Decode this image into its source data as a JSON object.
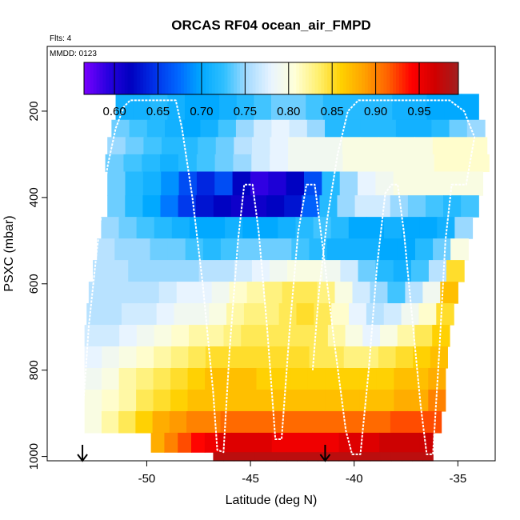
{
  "chart_data": {
    "type": "heatmap",
    "title": "ORCAS RF04 ocean_air_FMPD",
    "flights_note": "Flts: 4",
    "date_note": "MMDD: 0123",
    "xlabel": "Latitude (deg N)",
    "ylabel": "PSXC (mbar)",
    "xlim": [
      -54.8,
      -33.2
    ],
    "ylim": [
      1010,
      50
    ],
    "xticks": [
      -50,
      -45,
      -40,
      -35
    ],
    "xtick_labels": [
      "-50",
      "-45",
      "-40",
      "-35"
    ],
    "yticks": [
      200,
      400,
      600,
      800,
      1000
    ],
    "ytick_labels": [
      "200",
      "400",
      "600",
      "800",
      "1000"
    ],
    "colorbar": {
      "min": 0.565,
      "max": 0.995,
      "ticks": [
        0.6,
        0.65,
        0.7,
        0.75,
        0.8,
        0.85,
        0.9,
        0.95
      ],
      "tick_labels": [
        "0.60",
        "0.65",
        "0.70",
        "0.75",
        "0.80",
        "0.85",
        "0.90",
        "0.95"
      ],
      "colors": [
        "#7a00ff",
        "#2a00e0",
        "#0000c0",
        "#0030e8",
        "#0066ff",
        "#00a8ff",
        "#30c0ff",
        "#a8dcff",
        "#e8f4ff",
        "#ffffd8",
        "#fff070",
        "#ffd000",
        "#ffa000",
        "#ff6000",
        "#ff0000",
        "#d00000",
        "#a02020"
      ]
    },
    "rows": [
      {
        "p": 180,
        "p0": 160,
        "p1": 220,
        "lat0": -51.5,
        "lat1": -34.0,
        "v": [
          0.71,
          0.71,
          0.72,
          0.71,
          0.7,
          0.7,
          0.71,
          0.72,
          0.73,
          0.74,
          0.74,
          0.73,
          0.72,
          0.72,
          0.72,
          0.72,
          0.71,
          0.71,
          0.7,
          0.7,
          0.7
        ]
      },
      {
        "p": 240,
        "p0": 220,
        "p1": 260,
        "lat0": -51.7,
        "lat1": -33.7,
        "v": [
          0.74,
          0.73,
          0.72,
          0.71,
          0.7,
          0.71,
          0.73,
          0.75,
          0.77,
          0.78,
          0.77,
          0.75,
          0.72,
          0.72,
          0.72,
          0.72,
          0.71,
          0.71,
          0.72,
          0.74,
          0.75
        ]
      },
      {
        "p": 280,
        "p0": 260,
        "p1": 300,
        "lat0": -51.9,
        "lat1": -33.6,
        "v": [
          0.75,
          0.74,
          0.73,
          0.72,
          0.72,
          0.73,
          0.74,
          0.76,
          0.77,
          0.78,
          0.79,
          0.79,
          0.79,
          0.8,
          0.8,
          0.8,
          0.8,
          0.8,
          0.81,
          0.81,
          0.81
        ]
      },
      {
        "p": 320,
        "p0": 300,
        "p1": 340,
        "lat0": -52.0,
        "lat1": -33.5,
        "v": [
          0.74,
          0.73,
          0.72,
          0.71,
          0.72,
          0.73,
          0.74,
          0.75,
          0.77,
          0.78,
          0.79,
          0.79,
          0.79,
          0.8,
          0.8,
          0.8,
          0.8,
          0.8,
          0.81,
          0.81,
          0.81
        ]
      },
      {
        "p": 370,
        "p0": 340,
        "p1": 395,
        "lat0": -51.9,
        "lat1": -33.8,
        "v": [
          0.74,
          0.72,
          0.71,
          0.69,
          0.66,
          0.64,
          0.66,
          0.62,
          0.59,
          0.6,
          0.62,
          0.66,
          0.72,
          0.75,
          0.78,
          0.79,
          0.8,
          0.8,
          0.8,
          0.8,
          0.8
        ]
      },
      {
        "p": 420,
        "p0": 395,
        "p1": 445,
        "lat0": -51.9,
        "lat1": -34.0,
        "v": [
          0.74,
          0.72,
          0.7,
          0.68,
          0.65,
          0.63,
          0.62,
          0.61,
          0.61,
          0.62,
          0.63,
          0.67,
          0.72,
          0.75,
          0.77,
          0.77,
          0.75,
          0.74,
          0.73,
          0.72,
          0.73
        ]
      },
      {
        "p": 470,
        "p0": 445,
        "p1": 495,
        "lat0": -52.2,
        "lat1": -34.3,
        "v": [
          0.75,
          0.74,
          0.73,
          0.72,
          0.71,
          0.7,
          0.7,
          0.71,
          0.7,
          0.7,
          0.71,
          0.72,
          0.73,
          0.72,
          0.7,
          0.7,
          0.71,
          0.7,
          0.7,
          0.71,
          0.75
        ]
      },
      {
        "p": 520,
        "p0": 495,
        "p1": 545,
        "lat0": -52.4,
        "lat1": -34.5,
        "v": [
          0.76,
          0.75,
          0.75,
          0.74,
          0.74,
          0.73,
          0.72,
          0.73,
          0.74,
          0.74,
          0.74,
          0.73,
          0.72,
          0.71,
          0.71,
          0.71,
          0.7,
          0.7,
          0.72,
          0.74,
          0.8
        ]
      },
      {
        "p": 570,
        "p0": 545,
        "p1": 595,
        "lat0": -52.6,
        "lat1": -34.7,
        "v": [
          0.76,
          0.76,
          0.75,
          0.75,
          0.75,
          0.75,
          0.76,
          0.76,
          0.77,
          0.78,
          0.79,
          0.8,
          0.8,
          0.79,
          0.77,
          0.74,
          0.72,
          0.71,
          0.73,
          0.76,
          0.85
        ]
      },
      {
        "p": 620,
        "p0": 595,
        "p1": 645,
        "lat0": -52.8,
        "lat1": -35.0,
        "v": [
          0.76,
          0.76,
          0.76,
          0.76,
          0.77,
          0.78,
          0.78,
          0.79,
          0.81,
          0.82,
          0.83,
          0.84,
          0.84,
          0.83,
          0.8,
          0.77,
          0.75,
          0.73,
          0.76,
          0.79,
          0.87
        ]
      },
      {
        "p": 670,
        "p0": 645,
        "p1": 695,
        "lat0": -52.9,
        "lat1": -35.2,
        "v": [
          0.76,
          0.76,
          0.77,
          0.77,
          0.78,
          0.79,
          0.79,
          0.8,
          0.82,
          0.83,
          0.83,
          0.84,
          0.85,
          0.84,
          0.81,
          0.78,
          0.76,
          0.77,
          0.79,
          0.81,
          0.85
        ]
      },
      {
        "p": 720,
        "p0": 695,
        "p1": 745,
        "lat0": -53.0,
        "lat1": -35.4,
        "v": [
          0.77,
          0.77,
          0.78,
          0.79,
          0.8,
          0.81,
          0.82,
          0.82,
          0.83,
          0.84,
          0.84,
          0.84,
          0.84,
          0.84,
          0.82,
          0.8,
          0.78,
          0.8,
          0.82,
          0.84,
          0.86
        ]
      },
      {
        "p": 770,
        "p0": 745,
        "p1": 795,
        "lat0": -53.0,
        "lat1": -35.5,
        "v": [
          0.78,
          0.79,
          0.8,
          0.81,
          0.82,
          0.83,
          0.84,
          0.85,
          0.85,
          0.85,
          0.85,
          0.85,
          0.85,
          0.84,
          0.84,
          0.83,
          0.83,
          0.84,
          0.85,
          0.86,
          0.87
        ]
      },
      {
        "p": 820,
        "p0": 795,
        "p1": 845,
        "lat0": -53.0,
        "lat1": -35.6,
        "v": [
          0.79,
          0.8,
          0.82,
          0.83,
          0.84,
          0.85,
          0.86,
          0.87,
          0.87,
          0.87,
          0.86,
          0.86,
          0.86,
          0.86,
          0.86,
          0.86,
          0.86,
          0.86,
          0.87,
          0.87,
          0.88
        ]
      },
      {
        "p": 870,
        "p0": 845,
        "p1": 895,
        "lat0": -53.0,
        "lat1": -35.6,
        "v": [
          0.8,
          0.81,
          0.82,
          0.84,
          0.85,
          0.86,
          0.87,
          0.87,
          0.87,
          0.87,
          0.87,
          0.87,
          0.87,
          0.87,
          0.87,
          0.87,
          0.87,
          0.87,
          0.88,
          0.88,
          0.9
        ]
      },
      {
        "p": 920,
        "p0": 895,
        "p1": 945,
        "lat0": -53.0,
        "lat1": -35.8,
        "v": [
          0.8,
          0.82,
          0.84,
          0.86,
          0.88,
          0.89,
          0.9,
          0.9,
          0.91,
          0.91,
          0.91,
          0.91,
          0.91,
          0.91,
          0.91,
          0.91,
          0.91,
          0.91,
          0.92,
          0.92,
          0.92
        ]
      },
      {
        "p": 965,
        "p0": 945,
        "p1": 990,
        "lat0": -49.8,
        "lat1": -36.2,
        "v": [
          0.88,
          0.9,
          0.92,
          0.94,
          0.95,
          0.96,
          0.96,
          0.96,
          0.96,
          0.95,
          0.95,
          0.95,
          0.95,
          0.95,
          0.96,
          0.96,
          0.96,
          0.97,
          0.97,
          0.97,
          0.97
        ]
      },
      {
        "p": 1000,
        "p0": 990,
        "p1": 1010,
        "lat0": -46.8,
        "lat1": -36.2,
        "v": [
          0.98,
          0.98,
          0.98,
          0.98,
          0.98,
          0.98,
          0.98,
          0.98,
          0.98,
          0.98,
          0.98,
          0.98,
          0.98,
          0.98,
          0.98,
          0.98,
          0.98,
          0.98,
          0.98,
          0.98,
          0.98
        ]
      }
    ],
    "flight_track": [
      {
        "lat": -53.1,
        "p": 910
      },
      {
        "lat": -52.8,
        "p": 700
      },
      {
        "lat": -52.4,
        "p": 520
      },
      {
        "lat": -51.9,
        "p": 330
      },
      {
        "lat": -51.5,
        "p": 240
      },
      {
        "lat": -51.1,
        "p": 190
      },
      {
        "lat": -50.8,
        "p": 175
      },
      {
        "lat": -48.6,
        "p": 175
      },
      {
        "lat": -48.3,
        "p": 240
      },
      {
        "lat": -47.8,
        "p": 400
      },
      {
        "lat": -47.3,
        "p": 600
      },
      {
        "lat": -46.8,
        "p": 850
      },
      {
        "lat": -46.6,
        "p": 985
      },
      {
        "lat": -46.3,
        "p": 990
      },
      {
        "lat": -46.0,
        "p": 750
      },
      {
        "lat": -45.6,
        "p": 500
      },
      {
        "lat": -45.3,
        "p": 370
      },
      {
        "lat": -44.9,
        "p": 370
      },
      {
        "lat": -44.6,
        "p": 480
      },
      {
        "lat": -44.2,
        "p": 700
      },
      {
        "lat": -43.8,
        "p": 960
      },
      {
        "lat": -43.5,
        "p": 960
      },
      {
        "lat": -43.1,
        "p": 700
      },
      {
        "lat": -42.7,
        "p": 480
      },
      {
        "lat": -42.3,
        "p": 370
      },
      {
        "lat": -41.9,
        "p": 370
      },
      {
        "lat": -41.5,
        "p": 520
      },
      {
        "lat": -41.0,
        "p": 720
      },
      {
        "lat": -40.4,
        "p": 940
      },
      {
        "lat": -40.1,
        "p": 995
      },
      {
        "lat": -39.7,
        "p": 995
      },
      {
        "lat": -39.3,
        "p": 800
      },
      {
        "lat": -38.9,
        "p": 560
      },
      {
        "lat": -38.5,
        "p": 390
      },
      {
        "lat": -38.2,
        "p": 370
      },
      {
        "lat": -37.9,
        "p": 370
      },
      {
        "lat": -37.6,
        "p": 480
      },
      {
        "lat": -37.2,
        "p": 680
      },
      {
        "lat": -36.8,
        "p": 880
      },
      {
        "lat": -36.5,
        "p": 995
      },
      {
        "lat": -36.2,
        "p": 995
      },
      {
        "lat": -35.9,
        "p": 760
      },
      {
        "lat": -35.6,
        "p": 500
      },
      {
        "lat": -35.3,
        "p": 370
      },
      {
        "lat": -34.6,
        "p": 370
      },
      {
        "lat": -34.2,
        "p": 260
      },
      {
        "lat": -34.7,
        "p": 200
      },
      {
        "lat": -35.4,
        "p": 175
      },
      {
        "lat": -39.8,
        "p": 175
      },
      {
        "lat": -40.3,
        "p": 200
      },
      {
        "lat": -40.8,
        "p": 300
      },
      {
        "lat": -41.3,
        "p": 450
      },
      {
        "lat": -41.7,
        "p": 620
      },
      {
        "lat": -42.0,
        "p": 800
      }
    ],
    "arrows": [
      {
        "lat": -53.1
      },
      {
        "lat": -41.4
      }
    ]
  }
}
